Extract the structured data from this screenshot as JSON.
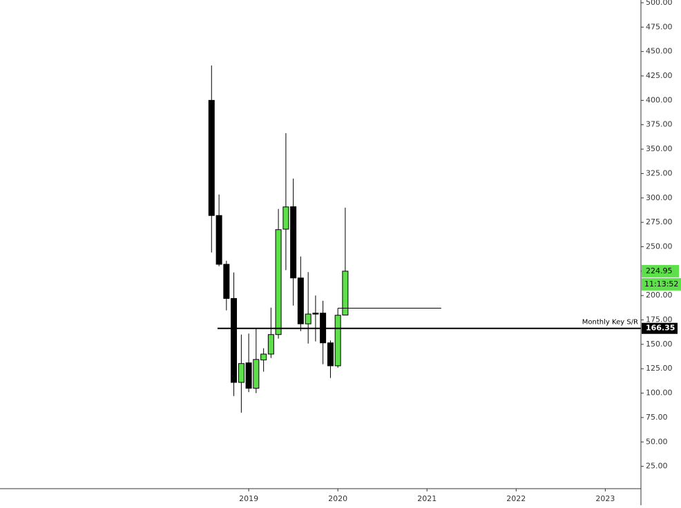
{
  "chart_data": {
    "type": "candlestick",
    "x": [
      2018.583,
      2018.667,
      2018.75,
      2018.833,
      2018.917,
      2019.0,
      2019.083,
      2019.167,
      2019.25,
      2019.333,
      2019.417,
      2019.5,
      2019.583,
      2019.667,
      2019.75,
      2019.833,
      2019.917,
      2020.0,
      2020.083
    ],
    "open": [
      400,
      282,
      232,
      197,
      111,
      131,
      105,
      134,
      140,
      160,
      268,
      291,
      218,
      171,
      182,
      182,
      151.5,
      128,
      180
    ],
    "high": [
      435.7,
      303.5,
      235.6,
      223.6,
      160,
      161,
      166,
      146,
      187.6,
      288.7,
      366.4,
      319.8,
      240,
      224,
      200,
      194.6,
      154,
      187,
      290
    ],
    "low": [
      244.1,
      230,
      184.8,
      97,
      80,
      101,
      100,
      122,
      136,
      155.8,
      226,
      189.7,
      163.5,
      150.8,
      153,
      129.6,
      115.5,
      126,
      180
    ],
    "close": [
      282,
      232,
      197,
      111,
      130.3,
      105,
      134.5,
      140,
      160,
      267.5,
      290.8,
      218,
      171,
      181,
      181,
      151.5,
      128,
      179.8,
      224.95
    ],
    "up_color": "#5de04a",
    "down_color": "#000000",
    "countdown": "11:13:52",
    "levels": [
      {
        "value": 166.35,
        "label": "Monthly Key S/R",
        "from": 2018.65
      },
      {
        "value": 187,
        "from": 2020.0,
        "to": 2021.16
      }
    ],
    "xlim": [
      2016.21,
      2023.4
    ],
    "xticks": [
      2019,
      2020,
      2021,
      2022,
      2023
    ],
    "ylim": [
      2.1,
      502.8
    ],
    "yticks": [
      {
        "value": 25,
        "label": "25.00"
      },
      {
        "value": 50,
        "label": "50.00"
      },
      {
        "value": 75,
        "label": "75.00"
      },
      {
        "value": 100,
        "label": "100.00"
      },
      {
        "value": 125,
        "label": "125.00"
      },
      {
        "value": 150,
        "label": "150.00"
      },
      {
        "value": 175,
        "label": "175.00"
      },
      {
        "value": 200,
        "label": "200.00"
      },
      {
        "value": 225,
        "label": "225.00"
      },
      {
        "value": 250,
        "label": "250.00"
      },
      {
        "value": 275,
        "label": "275.00"
      },
      {
        "value": 300,
        "label": "300.00"
      },
      {
        "value": 325,
        "label": "325.00"
      },
      {
        "value": 350,
        "label": "350.00"
      },
      {
        "value": 375,
        "label": "375.00"
      },
      {
        "value": 400,
        "label": "400.00"
      },
      {
        "value": 425,
        "label": "425.00"
      },
      {
        "value": 450,
        "label": "450.00"
      },
      {
        "value": 475,
        "label": "475.00"
      },
      {
        "value": 500,
        "label": "500.00"
      }
    ]
  }
}
